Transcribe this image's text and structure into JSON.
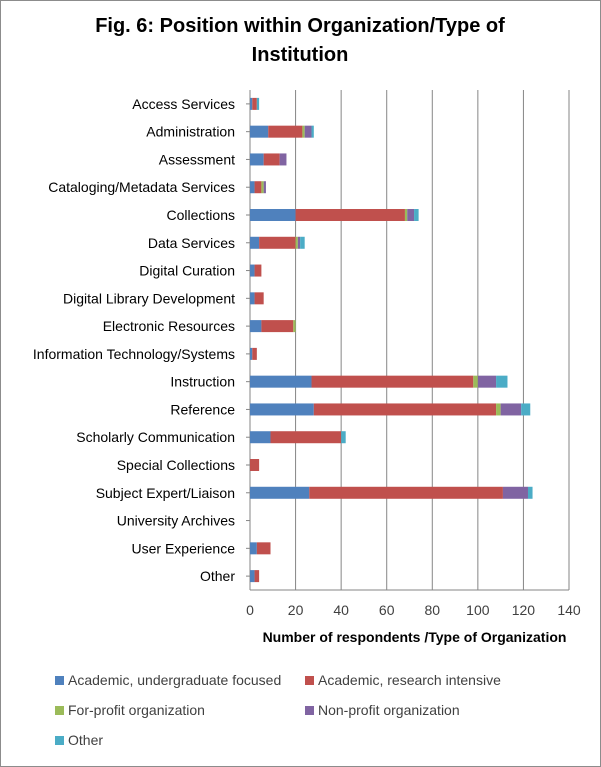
{
  "chart_data": {
    "type": "bar",
    "orientation": "horizontal",
    "stacked": true,
    "title": "Fig. 6: Position within Organization/Type of Institution",
    "xlabel": "Number of respondents /Type of Organization",
    "ylabel": "",
    "xlim": [
      0,
      140
    ],
    "xticks": [
      "0",
      "20",
      "40",
      "60",
      "80",
      "100",
      "120",
      "140"
    ],
    "grid": "vertical",
    "legend_position": "bottom",
    "categories": [
      "Access Services",
      "Administration",
      "Assessment",
      "Cataloging/Metadata Services",
      "Collections",
      "Data Services",
      "Digital Curation",
      "Digital Library Development",
      "Electronic Resources",
      "Information Technology/Systems",
      "Instruction",
      "Reference",
      "Scholarly Communication",
      "Special Collections",
      "Subject Expert/Liaison",
      "University Archives",
      "User Experience",
      "Other"
    ],
    "series": [
      {
        "name": "Academic, undergraduate focused",
        "color": "#4f81bd",
        "values": [
          1,
          8,
          6,
          2,
          20,
          4,
          2,
          2,
          5,
          1,
          27,
          28,
          9,
          0,
          26,
          0,
          3,
          2
        ]
      },
      {
        "name": "Academic, research intensive",
        "color": "#c0504d",
        "values": [
          2,
          15,
          7,
          3,
          48,
          16,
          3,
          4,
          14,
          2,
          71,
          80,
          31,
          4,
          85,
          0,
          6,
          2
        ]
      },
      {
        "name": "For-profit organization",
        "color": "#9bbb59",
        "values": [
          0,
          1,
          0,
          1,
          1,
          1,
          0,
          0,
          1,
          0,
          2,
          2,
          0,
          0,
          0,
          0,
          0,
          0
        ]
      },
      {
        "name": "Non-profit organization",
        "color": "#8064a2",
        "values": [
          0,
          3,
          3,
          1,
          3,
          1,
          0,
          0,
          0,
          0,
          8,
          9,
          0,
          0,
          11,
          0,
          0,
          0
        ]
      },
      {
        "name": "Other",
        "color": "#4bacc6",
        "values": [
          1,
          1,
          0,
          0,
          2,
          2,
          0,
          0,
          0,
          0,
          5,
          4,
          2,
          0,
          2,
          0,
          0,
          0
        ]
      }
    ]
  }
}
